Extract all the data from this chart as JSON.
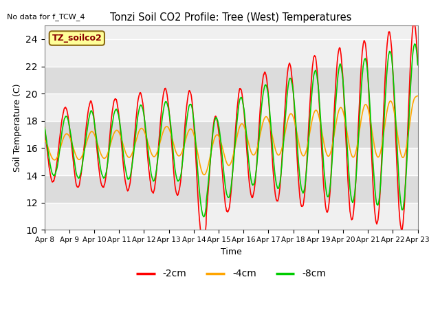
{
  "title": "Tonzi Soil CO2 Profile: Tree (West) Temperatures",
  "no_data_text": "No data for f_TCW_4",
  "xlabel": "Time",
  "ylabel": "Soil Temperature (C)",
  "ylim": [
    10,
    25
  ],
  "yticks": [
    10,
    12,
    14,
    16,
    18,
    20,
    22,
    24
  ],
  "legend_label": "TZ_soilco2",
  "series_labels": [
    "-2cm",
    "-4cm",
    "-8cm"
  ],
  "series_colors": [
    "#FF0000",
    "#FFA500",
    "#00CC00"
  ],
  "x_tick_labels": [
    "Apr 8",
    "Apr 9",
    "Apr 10",
    "Apr 11",
    "Apr 12",
    "Apr 13",
    "Apr 14",
    "Apr 15",
    "Apr 16",
    "Apr 17",
    "Apr 18",
    "Apr 19",
    "Apr 20",
    "Apr 21",
    "Apr 22",
    "Apr 23"
  ],
  "plot_bg_light": "#F0F0F0",
  "plot_bg_dark": "#DCDCDC",
  "line_width": 1.2,
  "figsize": [
    6.4,
    4.8
  ],
  "dpi": 100,
  "days": 15
}
